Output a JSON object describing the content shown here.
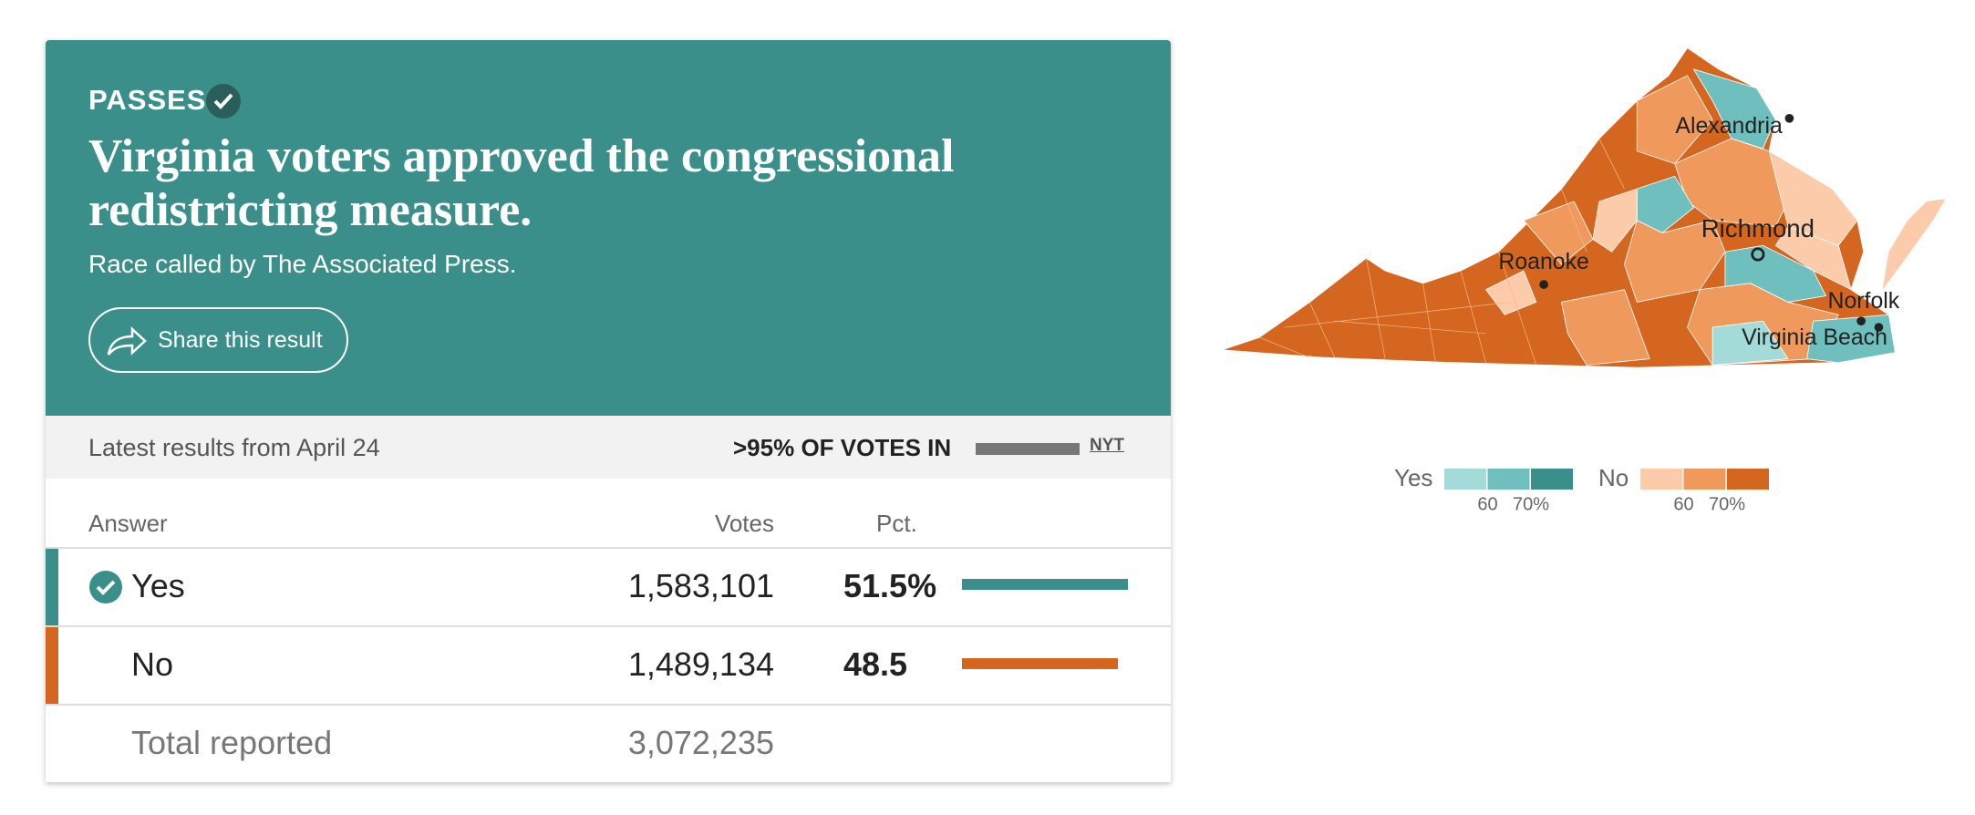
{
  "header": {
    "status": "PASSES",
    "title": "Virginia voters approved the congressional redistricting measure.",
    "subtitle": "Race called by The Associated Press.",
    "share": "Share this result"
  },
  "status_bar": {
    "latest": "Latest results from April 24",
    "votes_in": ">95% OF VOTES IN",
    "source": "NYT"
  },
  "table": {
    "columns": [
      "Answer",
      "Votes",
      "Pct."
    ],
    "rows": [
      {
        "answer": "Yes",
        "votes": "1,583,101",
        "pct": {
          "value": 51.5,
          "label": "51.5%"
        },
        "color": "#3a8f8a"
      },
      {
        "answer": "No",
        "votes": "1,489,134",
        "pct": 48.5,
        "color": "#d4661f"
      }
    ],
    "total": {
      "label": "Total reported",
      "votes": "3,072,235"
    }
  },
  "map": {
    "cities": [
      "Alexandria",
      "Richmond",
      "Roanoke",
      "Norfolk",
      "Virginia Beach"
    ],
    "legend": {
      "yes": {
        "label": "Yes",
        "colors": [
          "#a3dbd8",
          "#6ebfbd",
          "#3a8f8a"
        ],
        "ticks": [
          "60",
          "70%"
        ]
      },
      "no": {
        "label": "No",
        "colors": [
          "#fbcbaa",
          "#ef9a5c",
          "#d4661f"
        ],
        "ticks": [
          "60",
          "70%"
        ]
      }
    }
  }
}
